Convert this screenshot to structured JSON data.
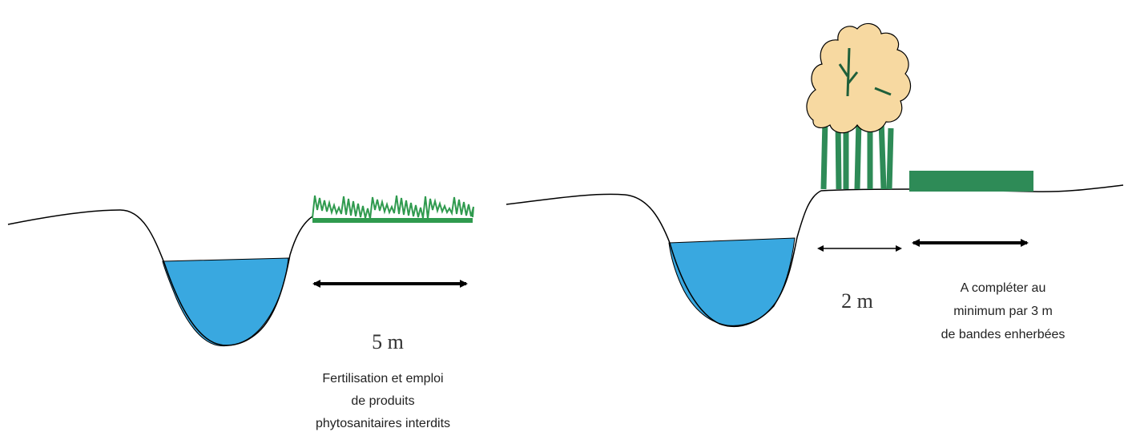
{
  "left_panel": {
    "distance_label": "5 m",
    "caption_lines": [
      "Fertilisation et emploi",
      "de produits",
      "phytosanitaires interdits"
    ]
  },
  "right_panel": {
    "distance_label_trees": "2 m",
    "caption_lines": [
      "A compléter au",
      "minimum par 3 m",
      "de bandes enherbées"
    ]
  },
  "colors": {
    "water": "#39a8e0",
    "grass": "#2f9a4e",
    "grass_strip": "#2e8b57",
    "tree_foliage": "#f7d9a1",
    "tree_trunk": "#2e8b57",
    "ground_line": "#000000",
    "arrow": "#000000"
  }
}
